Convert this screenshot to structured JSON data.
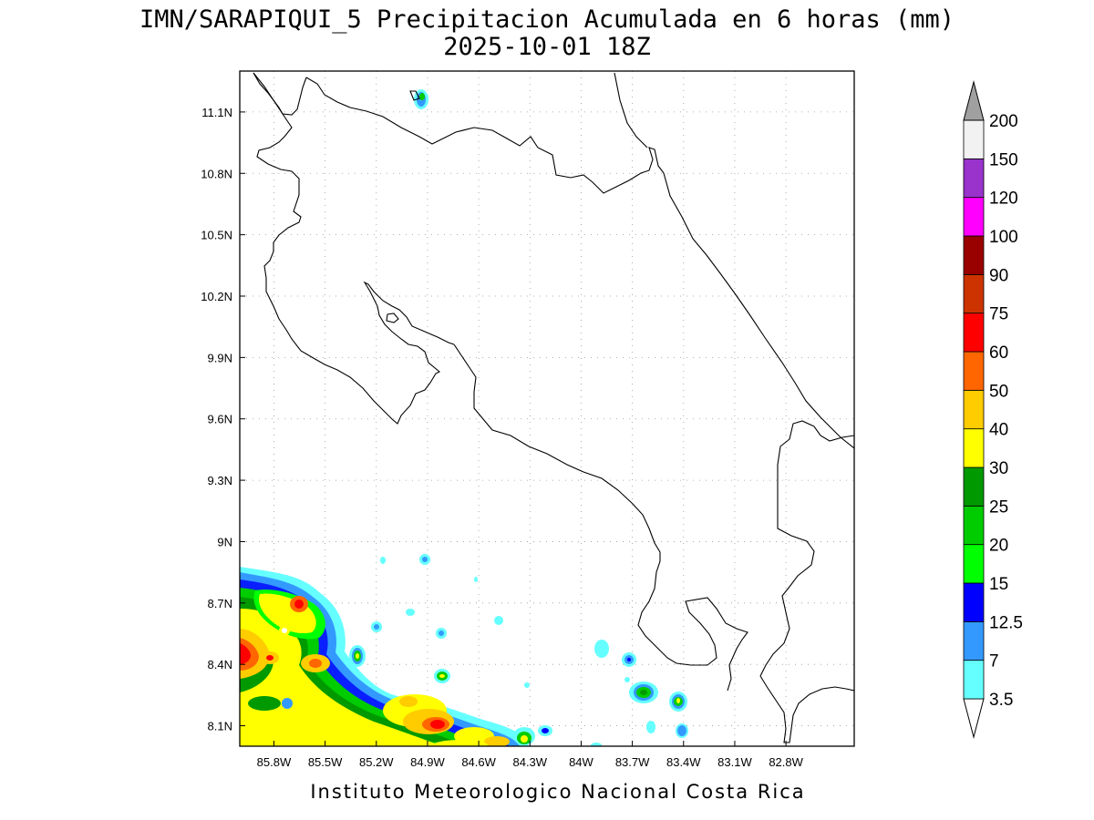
{
  "title_line1": "IMN/SARAPIQUI_5 Precipitacion Acumulada en 6 horas (mm)",
  "title_line2": "2025-10-01 18Z",
  "footer": "Instituto Meteorologico Nacional Costa Rica",
  "map": {
    "lon_range": [
      -86.0,
      -82.4
    ],
    "lat_range": [
      8.0,
      11.3
    ],
    "grid": true,
    "lon_ticks": [
      {
        "value": -85.8,
        "label": "85.8W"
      },
      {
        "value": -85.5,
        "label": "85.5W"
      },
      {
        "value": -85.2,
        "label": "85.2W"
      },
      {
        "value": -84.9,
        "label": "84.9W"
      },
      {
        "value": -84.6,
        "label": "84.6W"
      },
      {
        "value": -84.3,
        "label": "84.3W"
      },
      {
        "value": -84.0,
        "label": "84W"
      },
      {
        "value": -83.7,
        "label": "83.7W"
      },
      {
        "value": -83.4,
        "label": "83.4W"
      },
      {
        "value": -83.1,
        "label": "83.1W"
      },
      {
        "value": -82.8,
        "label": "82.8W"
      }
    ],
    "lat_ticks": [
      {
        "value": 11.1,
        "label": "11.1N"
      },
      {
        "value": 10.8,
        "label": "10.8N"
      },
      {
        "value": 10.5,
        "label": "10.5N"
      },
      {
        "value": 10.2,
        "label": "10.2N"
      },
      {
        "value": 9.9,
        "label": "9.9N"
      },
      {
        "value": 9.6,
        "label": "9.6N"
      },
      {
        "value": 9.3,
        "label": "9.3N"
      },
      {
        "value": 9.0,
        "label": "9N"
      },
      {
        "value": 8.7,
        "label": "8.7N"
      },
      {
        "value": 8.4,
        "label": "8.4N"
      },
      {
        "value": 8.1,
        "label": "8.1N"
      }
    ]
  },
  "colorbar": {
    "colors": [
      "#66ffff",
      "#3399ff",
      "#0000ff",
      "#00ff00",
      "#00cc00",
      "#009900",
      "#ffff00",
      "#ffcc00",
      "#ff6600",
      "#ff0000",
      "#cc3300",
      "#990000",
      "#ff00ff",
      "#9933cc",
      "#f2f2f2",
      "#a0a0a0"
    ],
    "labels": [
      "3.5",
      "7",
      "12.5",
      "15",
      "20",
      "25",
      "30",
      "40",
      "50",
      "60",
      "75",
      "90",
      "100",
      "120",
      "150",
      "200"
    ]
  }
}
